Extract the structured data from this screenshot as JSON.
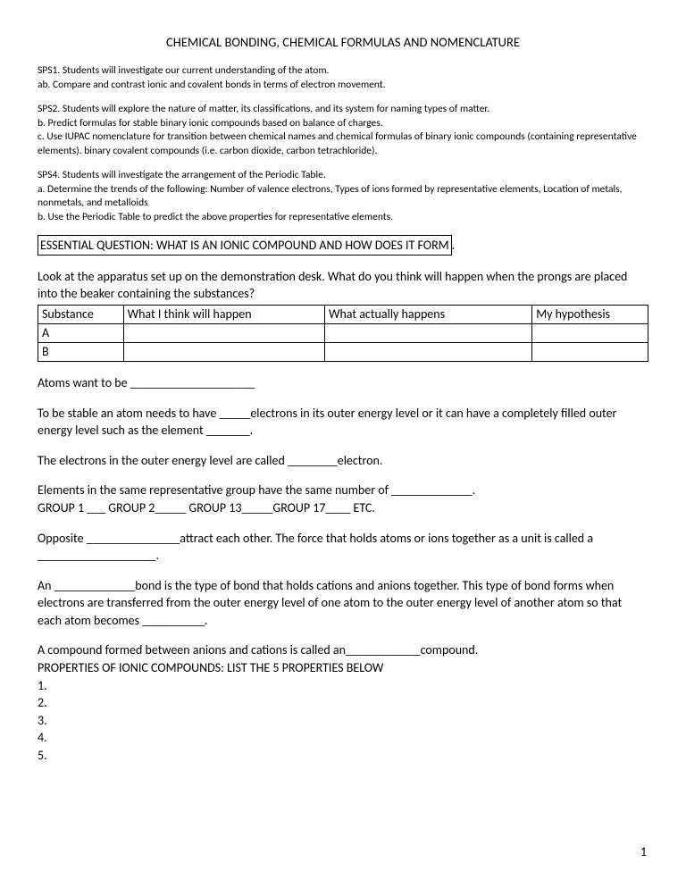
{
  "title": "CHEMICAL BONDING, CHEMICAL FORMULAS AND NOMENCLATURE",
  "sps1": {
    "line1": "SPS1. Students will investigate our current understanding of the atom.",
    "line2": "ab. Compare and contrast ionic and covalent bonds in terms of electron movement."
  },
  "sps2": {
    "line1": "SPS2. Students will explore the nature of matter, its classifications, and its system for naming types of matter.",
    "line2": " b. Predict formulas for stable binary ionic compounds based on balance of charges.",
    "line3": "c. Use IUPAC nomenclature for transition between chemical names and chemical formulas of binary ionic compounds (containing representative elements). binary covalent compounds (i.e. carbon dioxide, carbon tetrachloride)."
  },
  "sps4": {
    "line1": "SPS4. Students will investigate the arrangement of the Periodic Table.",
    "line2": "a. Determine the trends of the following: Number of valence electrons, Types of ions formed by representative elements, Location of metals, nonmetals, and metalloids",
    "line3": "b. Use the Periodic Table to predict the above properties for representative elements."
  },
  "essential": "ESSENTIAL QUESTION:  WHAT IS AN IONIC COMPOUND AND HOW DOES IT FORM",
  "essential_period": ".",
  "apparatus_intro": "Look at the apparatus set up on the demonstration desk. What do you think will happen when the prongs are placed into the beaker containing the substances?",
  "table": {
    "h1": "Substance",
    "h2": "What I think will happen",
    "h3": "What actually happens",
    "h4": "My hypothesis",
    "rA": "A",
    "rB": "B"
  },
  "p_atoms": "Atoms want to be ____________________",
  "p_stable": "To be stable an atom needs to have _____electrons in its outer energy level or it can have a completely filled outer energy level such as the element _______.",
  "p_outer": "The electrons in the outer energy level are called ________electron.",
  "p_groups1": "Elements in the same representative group have the same number of _____________.",
  "p_groups2": "GROUP 1 ___    GROUP 2_____ GROUP 13_____GROUP 17____ ETC.",
  "p_opposite": "Opposite _______________attract each other.  The force that holds atoms or ions together as a unit is called a ___________________.",
  "p_bond": "An _____________bond is the type of bond that holds cations and anions together.  This type of bond forms when electrons are transferred from the outer energy level of one atom to the outer energy level of another atom so that each atom becomes __________.",
  "p_compound": "A compound formed between anions and cations is called an____________compound.",
  "p_props": "PROPERTIES OF IONIC COMPOUNDS:  LIST THE 5 PROPERTIES BELOW",
  "n1": "1.",
  "n2": "2.",
  "n3": "3.",
  "n4": "4.",
  "n5": "5.",
  "page_number": "1"
}
